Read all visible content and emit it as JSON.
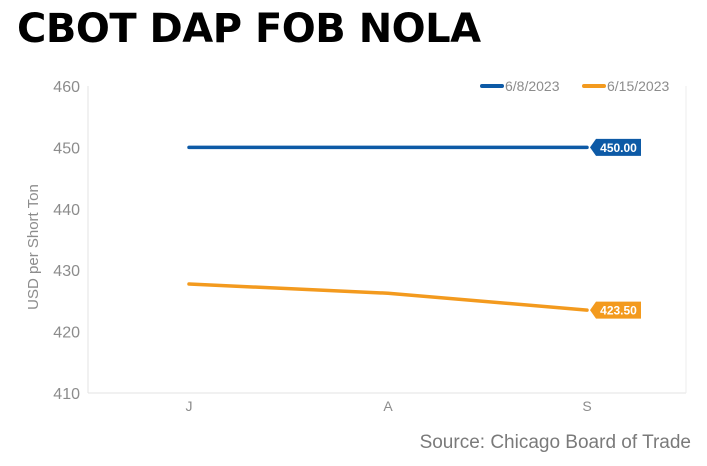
{
  "chart_data": {
    "type": "line",
    "title": "CBOT DAP FOB NOLA",
    "ylabel": "USD per Short Ton",
    "xlabel": "",
    "categories": [
      "J",
      "A",
      "S"
    ],
    "ylim": [
      410,
      460
    ],
    "yticks": [
      410,
      420,
      430,
      440,
      450,
      460
    ],
    "series": [
      {
        "name": "6/8/2023",
        "color": "#0d5aa6",
        "values": [
          450.0,
          450.0,
          450.0
        ],
        "end_label": "450.00"
      },
      {
        "name": "6/15/2023",
        "color": "#f39a1e",
        "values": [
          427.75,
          426.25,
          423.5
        ],
        "end_label": "423.50"
      }
    ],
    "legend": "top-right",
    "grid": false,
    "source": "Source: Chicago Board of Trade"
  }
}
